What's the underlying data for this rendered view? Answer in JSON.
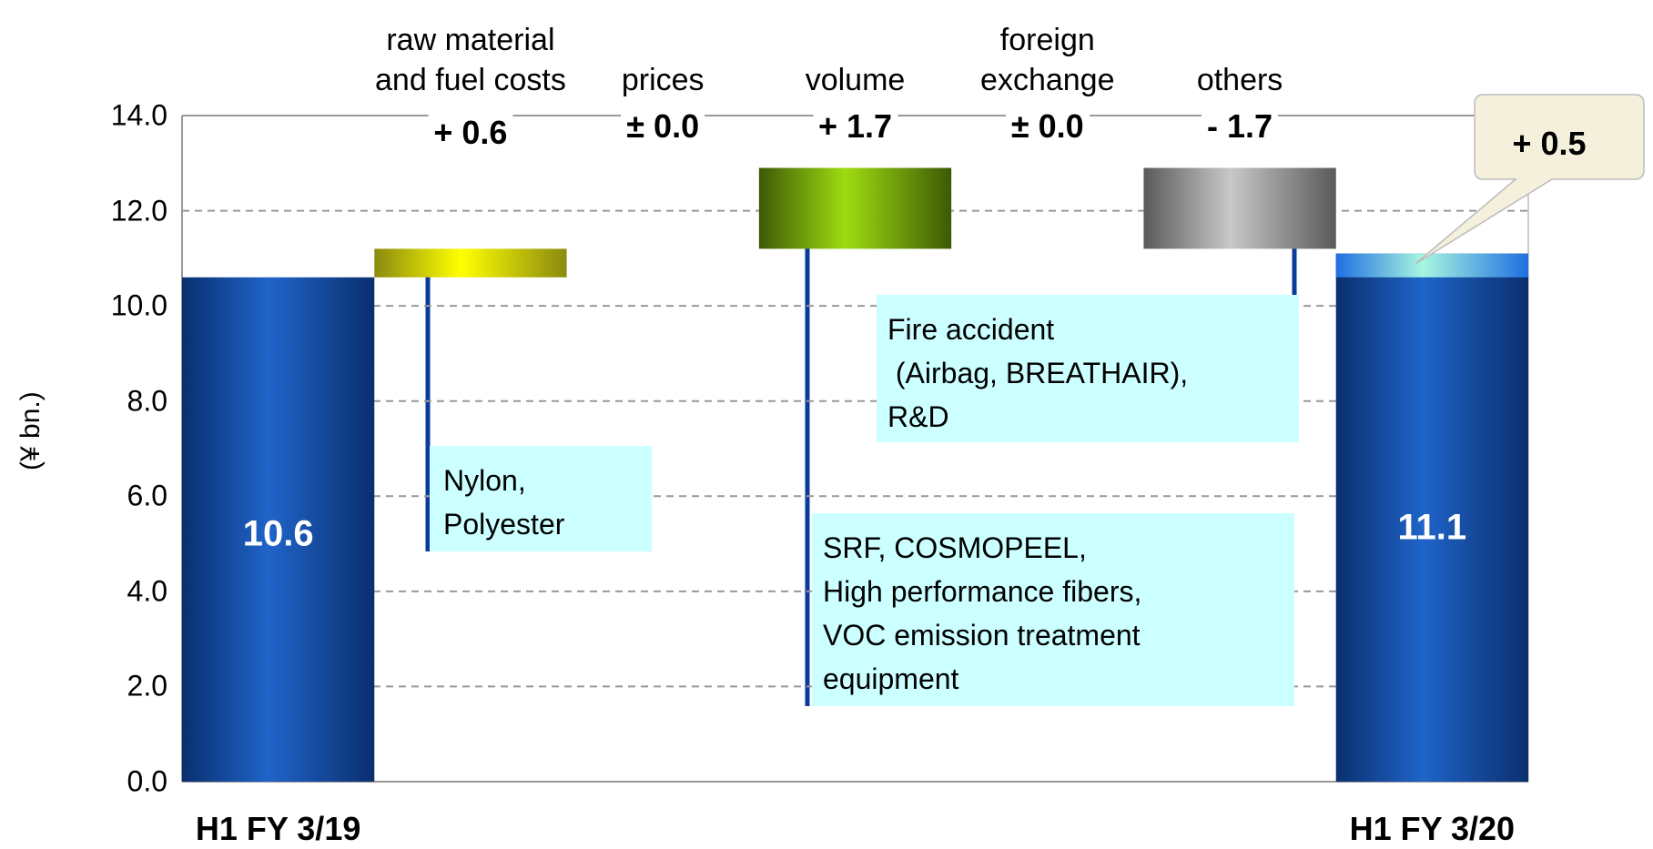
{
  "chart_data": {
    "type": "waterfall",
    "ylabel": "(¥ bn.)",
    "categories": [
      "H1 FY 3/19",
      "raw material\nand fuel costs",
      "prices",
      "volume",
      "foreign\nexchange",
      "others",
      "H1 FY 3/20"
    ],
    "values": [
      10.6,
      0.6,
      0.0,
      1.7,
      0.0,
      -1.7,
      11.1
    ],
    "value_labels": [
      "10.6",
      "+ 0.6",
      "± 0.0",
      "+ 1.7",
      "± 0.0",
      "- 1.7",
      "11.1"
    ],
    "colors": [
      [
        "#0a2f6e",
        "#1f64c9"
      ],
      [
        "#8a8a10",
        "#ffff00"
      ],
      null,
      [
        "#3d5a06",
        "#9fdc10"
      ],
      null,
      [
        "#5a5a5a",
        "#c8c8c8"
      ],
      [
        "#0a2f6e",
        "#1f64c9"
      ]
    ],
    "change": {
      "value": 0.5,
      "label": "+ 0.5",
      "colors": [
        "#1e6fe0",
        "#a8f5e0"
      ]
    },
    "annotations": [
      "Nylon,\nPolyester",
      "Fire accident\n (Airbag, BREATHAIR),\nR&D",
      "SRF, COSMOPEEL,\nHigh performance fibers,\nVOC emission treatment\nequipment"
    ],
    "ylim": [
      0,
      14
    ],
    "yticks": [
      {
        "value": 0,
        "label": "0.0"
      },
      {
        "value": 2,
        "label": "2.0"
      },
      {
        "value": 4,
        "label": "4.0"
      },
      {
        "value": 6,
        "label": "6.0"
      },
      {
        "value": 8,
        "label": "8.0"
      },
      {
        "value": 10,
        "label": "10.0"
      },
      {
        "value": 12,
        "label": "12.0"
      },
      {
        "value": 14,
        "label": "14.0"
      }
    ],
    "grid": true
  }
}
